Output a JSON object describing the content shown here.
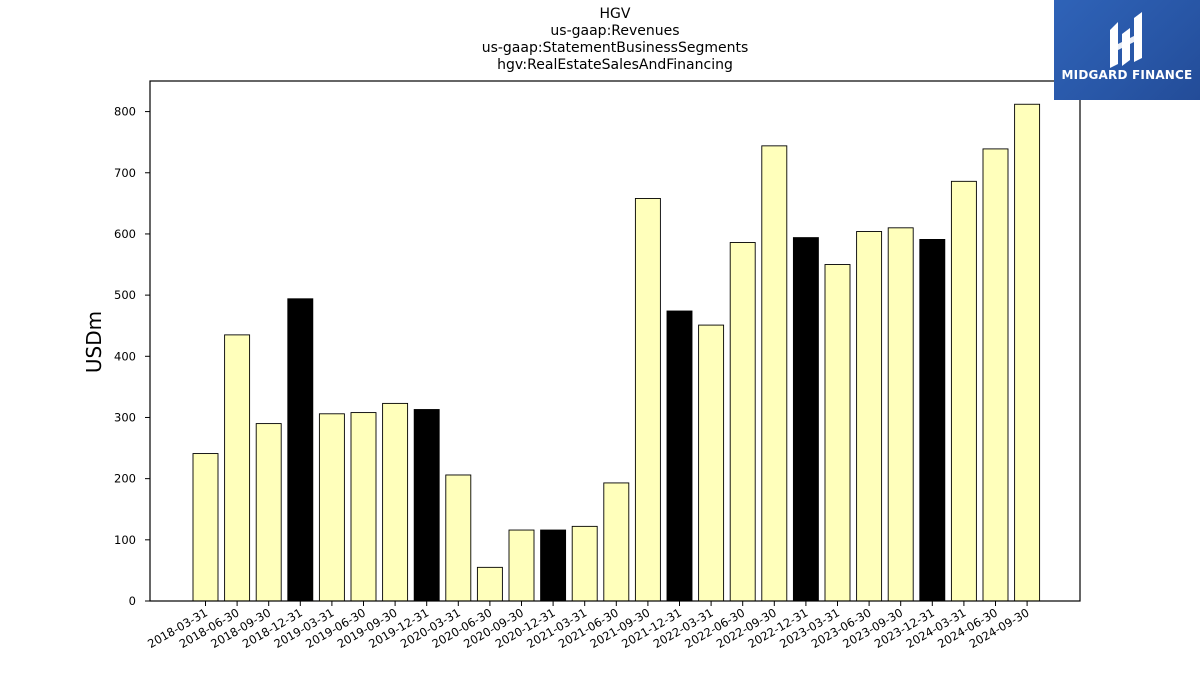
{
  "chart_data": {
    "type": "bar",
    "title": [
      "HGV",
      "us-gaap:Revenues",
      "us-gaap:StatementBusinessSegments",
      "hgv:RealEstateSalesAndFinancing"
    ],
    "xlabel": "",
    "ylabel": "USDm",
    "ylim": [
      0,
      850
    ],
    "yticks": [
      0,
      100,
      200,
      300,
      400,
      500,
      600,
      700,
      800
    ],
    "grid": false,
    "categories": [
      "2018-03-31",
      "2018-06-30",
      "2018-09-30",
      "2018-12-31",
      "2019-03-31",
      "2019-06-30",
      "2019-09-30",
      "2019-12-31",
      "2020-03-31",
      "2020-06-30",
      "2020-09-30",
      "2020-12-31",
      "2021-03-31",
      "2021-06-30",
      "2021-09-30",
      "2021-12-31",
      "2022-03-31",
      "2022-06-30",
      "2022-09-30",
      "2022-12-31",
      "2023-03-31",
      "2023-06-30",
      "2023-09-30",
      "2023-12-31",
      "2024-03-31",
      "2024-06-30",
      "2024-09-30"
    ],
    "values": [
      241,
      435,
      290,
      494,
      306,
      308,
      323,
      313,
      206,
      55,
      116,
      116,
      122,
      193,
      658,
      474,
      451,
      586,
      744,
      594,
      550,
      604,
      610,
      591,
      686,
      739,
      812
    ],
    "colors": {
      "default": "#ffffbb",
      "q4": "#000000",
      "edge": "#000000"
    }
  },
  "logo": {
    "text": "MIDGARD FINANCE"
  }
}
